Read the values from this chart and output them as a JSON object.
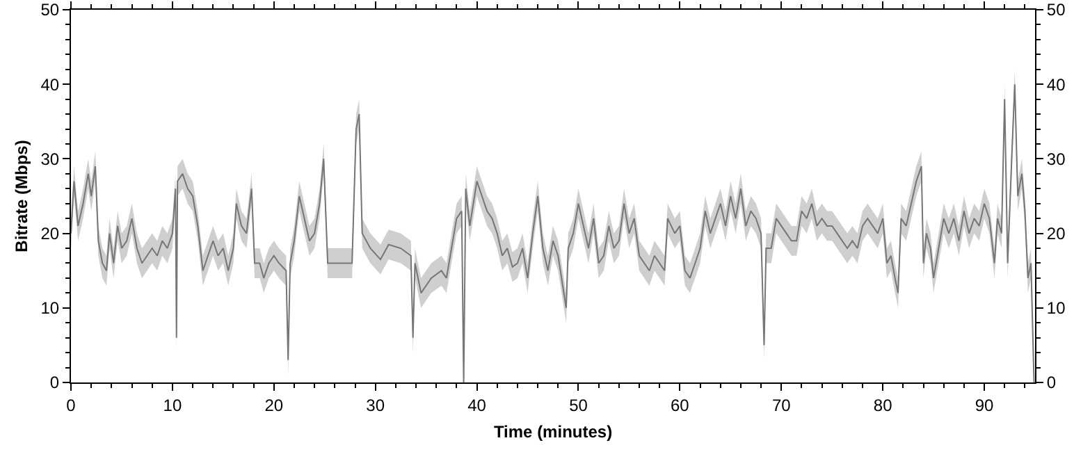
{
  "chart_data": {
    "type": "line",
    "xlabel": "Time (minutes)",
    "ylabel": "Bitrate (Mbps)",
    "xlim": [
      0,
      95
    ],
    "xticks": [
      0,
      10,
      20,
      30,
      40,
      50,
      60,
      70,
      80,
      90
    ],
    "ylim": [
      0,
      50
    ],
    "yticks": [
      0,
      10,
      20,
      30,
      40,
      50
    ],
    "y2lim": [
      0,
      50
    ],
    "y2ticks": [
      0,
      10,
      20,
      30,
      40,
      50
    ],
    "grid": false,
    "x": [
      0,
      0.3,
      0.7,
      1.2,
      1.7,
      2.0,
      2.4,
      2.7,
      3.1,
      3.5,
      3.8,
      4.2,
      4.6,
      5.0,
      5.5,
      6.0,
      6.5,
      7.0,
      7.5,
      8.0,
      8.5,
      9.0,
      9.5,
      10.0,
      10.3,
      10.4,
      10.5,
      11.0,
      11.5,
      12.0,
      12.5,
      13.0,
      13.5,
      14.0,
      14.5,
      15.0,
      15.5,
      16.0,
      16.3,
      16.8,
      17.3,
      17.8,
      18.1,
      18.6,
      19.0,
      19.5,
      20.0,
      20.5,
      21.2,
      21.4,
      21.6,
      22.0,
      22.5,
      23.0,
      23.5,
      24.0,
      24.5,
      24.9,
      25.3,
      26.0,
      27.0,
      27.7,
      28.1,
      28.4,
      28.7,
      29.5,
      30.5,
      31.3,
      32.5,
      33.5,
      33.7,
      33.9,
      34.5,
      35.5,
      36.5,
      37.0,
      37.5,
      38.0,
      38.5,
      38.7,
      38.9,
      39.3,
      40.0,
      40.5,
      41.0,
      41.5,
      42.0,
      42.5,
      43.0,
      43.5,
      44.0,
      44.5,
      45.0,
      45.5,
      46.0,
      46.5,
      47.0,
      47.5,
      48.0,
      48.8,
      49.0,
      49.5,
      50.0,
      50.5,
      51.0,
      51.5,
      52.0,
      52.5,
      53.0,
      53.5,
      54.0,
      54.5,
      55.0,
      55.5,
      56.0,
      56.5,
      57.0,
      57.5,
      58.0,
      58.5,
      58.8,
      59.5,
      60.0,
      60.5,
      61.0,
      61.5,
      62.0,
      62.5,
      63.0,
      63.5,
      64.0,
      64.5,
      65.0,
      65.5,
      66.0,
      66.5,
      67.0,
      67.5,
      68.0,
      68.3,
      68.5,
      69.0,
      69.5,
      70.0,
      70.5,
      71.0,
      71.5,
      72.0,
      72.5,
      73.0,
      73.5,
      74.0,
      74.5,
      75.0,
      75.5,
      76.0,
      76.5,
      77.0,
      77.5,
      78.0,
      78.5,
      79.0,
      79.5,
      80.0,
      80.4,
      80.8,
      81.2,
      81.5,
      81.8,
      82.3,
      82.8,
      83.3,
      83.8,
      84.0,
      84.3,
      84.7,
      85.0,
      85.5,
      86.0,
      86.5,
      87.0,
      87.5,
      88.0,
      88.5,
      89.0,
      89.5,
      90.0,
      90.5,
      91.0,
      91.3,
      91.7,
      92.0,
      92.3,
      92.7,
      93.0,
      93.3,
      93.7,
      94.0,
      94.3,
      94.6,
      94.9
    ],
    "series": [
      {
        "color": "#767676",
        "values": [
          20,
          27,
          21,
          24,
          28,
          25,
          29,
          19,
          16,
          15,
          20,
          16,
          21,
          18,
          19,
          22,
          18,
          16,
          17,
          18,
          17,
          19,
          18,
          20,
          26,
          6,
          27,
          28,
          26,
          25,
          21,
          15,
          17,
          19,
          17,
          18,
          15,
          18,
          24,
          21,
          20,
          26,
          16,
          16,
          14,
          16,
          17,
          16,
          15,
          3,
          16,
          19,
          25,
          22,
          19,
          20,
          24,
          30,
          16,
          16,
          16,
          16,
          34,
          36,
          20,
          18,
          16.5,
          18.5,
          18,
          17,
          6,
          16,
          12,
          14,
          15,
          14,
          18,
          22,
          23,
          0,
          26,
          21,
          27,
          25,
          23,
          22,
          20,
          17,
          18,
          15.5,
          16,
          18,
          14,
          20,
          25,
          18,
          15,
          19,
          17,
          10,
          18,
          20,
          24,
          21,
          18,
          22,
          16,
          17,
          21,
          18,
          19,
          24,
          20,
          22,
          17,
          16,
          15,
          17,
          16,
          15,
          22,
          20,
          21,
          15,
          14,
          16,
          18,
          23,
          20,
          22,
          24,
          21,
          25,
          22,
          26,
          21,
          23,
          22,
          20,
          5,
          18,
          18,
          22,
          21,
          20,
          19,
          19,
          23,
          22,
          24,
          21,
          22,
          21,
          21,
          20,
          19,
          18,
          19,
          18,
          21,
          22,
          21,
          20,
          22,
          16,
          17,
          14,
          12,
          22,
          21,
          24,
          27,
          29,
          16,
          20,
          18,
          14,
          18,
          22,
          20,
          22,
          19,
          23,
          20,
          22,
          21,
          24,
          22,
          16,
          22,
          20,
          38,
          16,
          30,
          40,
          25,
          28,
          23,
          14,
          16,
          0
        ],
        "lower": [
          18,
          25,
          19,
          22,
          26,
          23,
          27,
          17,
          14,
          13,
          18,
          14,
          19,
          16,
          17,
          20,
          16,
          14,
          15,
          16,
          15,
          17,
          16,
          18,
          24,
          4,
          25,
          26,
          24,
          23,
          19,
          13,
          15,
          17,
          15,
          16,
          13,
          16,
          22,
          19,
          18,
          24,
          14,
          14,
          12,
          14,
          15,
          14,
          13,
          1,
          14,
          17,
          23,
          20,
          17,
          18,
          22,
          28,
          14,
          14,
          14,
          14,
          32,
          34,
          18,
          16,
          14.5,
          16.5,
          16,
          15,
          4,
          14,
          10,
          12,
          13,
          12,
          16,
          20,
          21,
          0,
          24,
          19,
          25,
          23,
          21,
          20,
          18,
          15,
          16,
          13.5,
          14,
          16,
          12,
          18,
          23,
          16,
          13,
          17,
          15,
          8,
          16,
          18,
          22,
          19,
          16,
          20,
          14,
          15,
          19,
          16,
          17,
          22,
          18,
          20,
          15,
          14,
          13,
          15,
          14,
          13,
          20,
          18,
          19,
          13,
          12,
          14,
          16,
          21,
          18,
          20,
          22,
          19,
          23,
          20,
          24,
          19,
          21,
          20,
          18,
          3,
          16,
          16,
          20,
          19,
          18,
          17,
          17,
          21,
          20,
          22,
          19,
          20,
          19,
          19,
          18,
          17,
          16,
          17,
          16,
          19,
          20,
          19,
          18,
          20,
          14,
          15,
          12,
          10,
          20,
          19,
          22,
          25,
          27,
          14,
          18,
          16,
          12,
          16,
          20,
          18,
          20,
          17,
          21,
          18,
          20,
          19,
          22,
          20,
          14,
          20,
          18,
          36,
          14,
          28,
          38,
          23,
          26,
          21,
          12,
          14,
          0
        ],
        "upper": [
          22,
          29,
          23,
          26,
          30,
          27,
          31,
          21,
          18,
          17,
          22,
          18,
          23,
          20,
          21,
          24,
          20,
          18,
          19,
          20,
          19,
          21,
          20,
          22,
          28,
          8,
          29,
          30,
          28,
          27,
          23,
          17,
          19,
          21,
          19,
          20,
          17,
          20,
          26,
          23,
          22,
          28,
          18,
          18,
          16,
          18,
          19,
          18,
          17,
          5,
          18,
          21,
          27,
          24,
          21,
          22,
          26,
          32,
          18,
          18,
          18,
          18,
          36,
          38,
          22,
          20,
          18.5,
          20.5,
          20,
          19,
          8,
          18,
          14,
          16,
          17,
          16,
          20,
          24,
          25,
          2,
          28,
          23,
          29,
          27,
          25,
          24,
          22,
          19,
          20,
          17.5,
          18,
          20,
          16,
          22,
          27,
          20,
          17,
          21,
          19,
          12,
          20,
          22,
          26,
          23,
          20,
          24,
          18,
          19,
          23,
          20,
          21,
          26,
          22,
          24,
          19,
          18,
          17,
          19,
          18,
          17,
          24,
          22,
          23,
          17,
          16,
          18,
          20,
          25,
          22,
          24,
          26,
          23,
          27,
          24,
          28,
          23,
          25,
          24,
          22,
          7,
          20,
          20,
          24,
          23,
          22,
          21,
          21,
          25,
          24,
          26,
          23,
          24,
          23,
          23,
          22,
          21,
          20,
          21,
          20,
          23,
          24,
          23,
          22,
          24,
          18,
          19,
          16,
          14,
          24,
          23,
          26,
          29,
          31,
          18,
          22,
          20,
          16,
          20,
          24,
          22,
          24,
          21,
          25,
          22,
          24,
          23,
          26,
          24,
          18,
          24,
          22,
          40,
          18,
          32,
          42,
          27,
          30,
          25,
          16,
          18,
          2
        ]
      }
    ]
  }
}
